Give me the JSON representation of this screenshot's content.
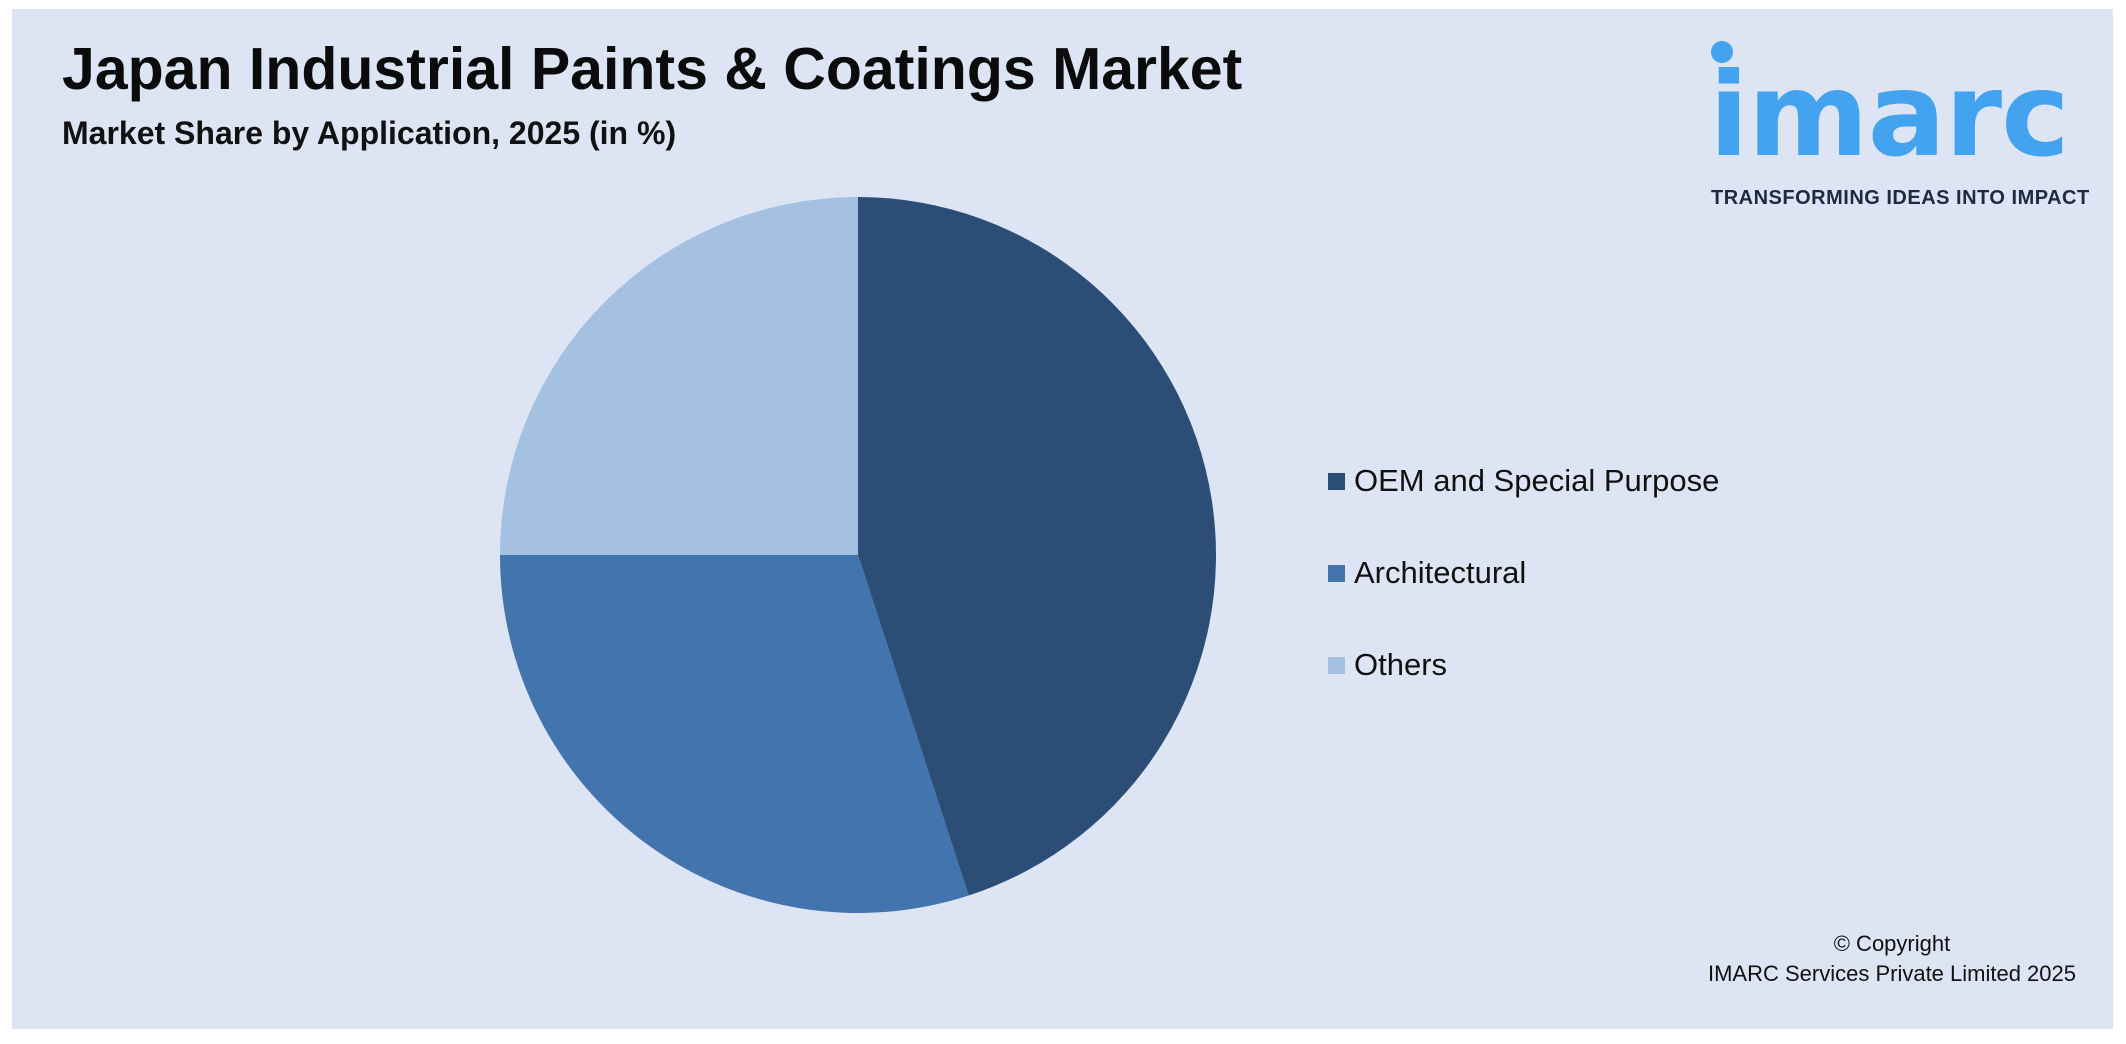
{
  "header": {
    "title": "Japan Industrial Paints & Coatings Market",
    "subtitle": "Market Share by Application, 2025 (in %)"
  },
  "logo": {
    "text": "imarc",
    "tagline": "TRANSFORMING IDEAS INTO IMPACT",
    "color": "#44a3ee"
  },
  "chart_data": {
    "type": "pie",
    "title": "Japan Industrial Paints & Coatings Market",
    "subtitle": "Market Share by Application, 2025 (in %)",
    "categories": [
      "OEM and Special Purpose",
      "Architectural",
      "Others"
    ],
    "values": [
      45,
      30,
      25
    ],
    "colors": [
      "#2c4d75",
      "#4274ae",
      "#a5c1e2"
    ],
    "legend_position": "right"
  },
  "footer": {
    "copyright_line1": "© Copyright",
    "copyright_line2": "IMARC Services Private Limited 2025"
  }
}
